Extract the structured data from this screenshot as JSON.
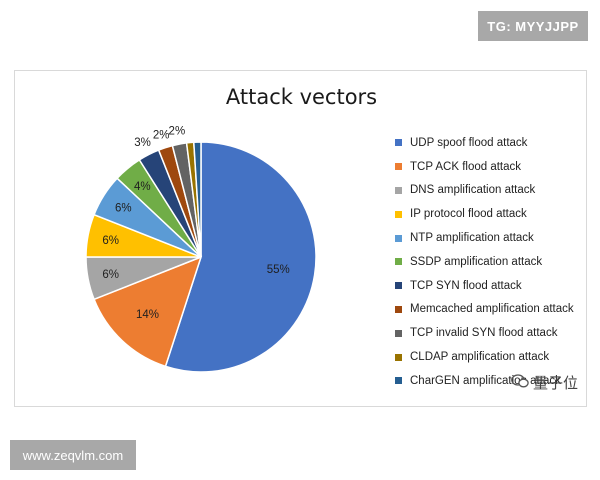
{
  "overlays": {
    "top_right_tag": "TG: MYYJJPP",
    "bottom_left_tag": "www.zeqvlm.com",
    "watermark_text": "量子位"
  },
  "chart_data": {
    "type": "pie",
    "title": "Attack vectors",
    "legend_position": "right",
    "slices": [
      {
        "label": "UDP spoof flood attack",
        "value": 55,
        "display": "55%",
        "color": "#4472C4"
      },
      {
        "label": "TCP ACK flood attack",
        "value": 14,
        "display": "14%",
        "color": "#ED7D31"
      },
      {
        "label": "DNS amplification attack",
        "value": 6,
        "display": "6%",
        "color": "#A5A5A5"
      },
      {
        "label": "IP protocol flood attack",
        "value": 6,
        "display": "6%",
        "color": "#FFC000"
      },
      {
        "label": "NTP amplification attack",
        "value": 6,
        "display": "6%",
        "color": "#5B9BD5"
      },
      {
        "label": "SSDP amplification attack",
        "value": 4,
        "display": "4%",
        "color": "#70AD47"
      },
      {
        "label": "TCP SYN flood attack",
        "value": 3,
        "display": "3%",
        "color": "#264478"
      },
      {
        "label": "Memcached amplification attack",
        "value": 2,
        "display": "2%",
        "color": "#9E480E"
      },
      {
        "label": "TCP invalid SYN flood attack",
        "value": 2,
        "display": "2%",
        "color": "#636363"
      },
      {
        "label": "CLDAP amplification attack",
        "value": 1,
        "display": "",
        "color": "#997300"
      },
      {
        "label": "CharGEN amplification attack",
        "value": 1,
        "display": "",
        "color": "#255E91"
      }
    ]
  }
}
